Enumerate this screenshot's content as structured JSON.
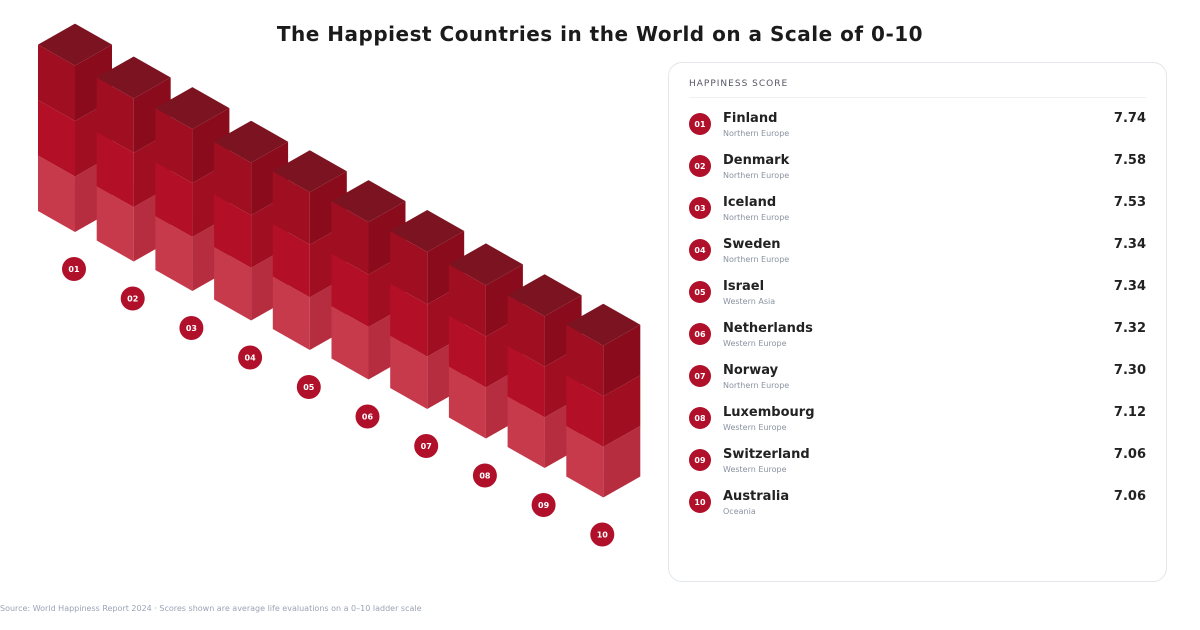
{
  "page": {
    "title": "The Happiest Countries in the World on a Scale of 0-10",
    "footer": "Source: World Happiness Report 2024 · Scores shown are average life evaluations on a 0–10 ladder scale"
  },
  "card": {
    "header": "HAPPINESS SCORE",
    "rows": [
      {
        "rank": "01",
        "country": "Finland",
        "region": "Northern Europe",
        "score": "7.74"
      },
      {
        "rank": "02",
        "country": "Denmark",
        "region": "Northern Europe",
        "score": "7.58"
      },
      {
        "rank": "03",
        "country": "Iceland",
        "region": "Northern Europe",
        "score": "7.53"
      },
      {
        "rank": "04",
        "country": "Sweden",
        "region": "Northern Europe",
        "score": "7.34"
      },
      {
        "rank": "05",
        "country": "Israel",
        "region": "Western Asia",
        "score": "7.34"
      },
      {
        "rank": "06",
        "country": "Netherlands",
        "region": "Western Europe",
        "score": "7.32"
      },
      {
        "rank": "07",
        "country": "Norway",
        "region": "Northern Europe",
        "score": "7.30"
      },
      {
        "rank": "08",
        "country": "Luxembourg",
        "region": "Western Europe",
        "score": "7.12"
      },
      {
        "rank": "09",
        "country": "Switzerland",
        "region": "Western Europe",
        "score": "7.06"
      },
      {
        "rank": "10",
        "country": "Australia",
        "region": "Oceania",
        "score": "7.06"
      }
    ]
  },
  "colors": {
    "top": "#7b1420",
    "left_shades": [
      "#a00e21",
      "#b30f26",
      "#c63a4b"
    ],
    "right_shades": [
      "#8a0c1c",
      "#a00e21",
      "#b52d3f"
    ],
    "badge": "#b1102b"
  },
  "chart_data": {
    "type": "bar",
    "title": "The Happiest Countries in the World on a Scale of 0-10",
    "categories": [
      "01",
      "02",
      "03",
      "04",
      "05",
      "06",
      "07",
      "08",
      "09",
      "10"
    ],
    "values": [
      7.74,
      7.58,
      7.53,
      7.34,
      7.34,
      7.32,
      7.3,
      7.12,
      7.06,
      7.06
    ],
    "ylim": [
      0,
      10
    ],
    "grid": false
  }
}
